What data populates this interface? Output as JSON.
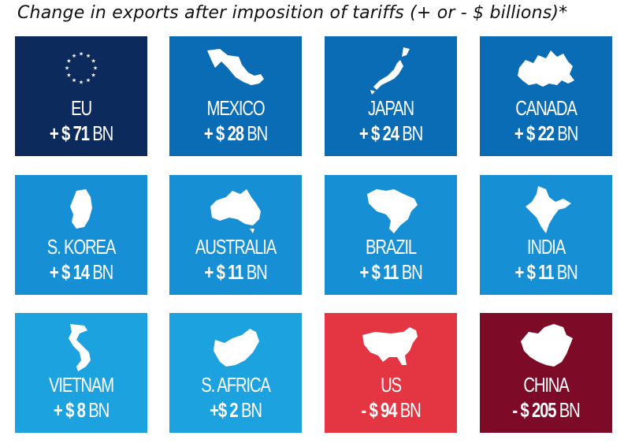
{
  "title": "Change in exports after imposition of tariffs (+ or - $ billions)*",
  "colors": {
    "eu": "#0c2a5c",
    "blue_dark": "#0a6cb4",
    "blue_mid": "#168fd4",
    "blue_light": "#1da2e0",
    "us": "#e43642",
    "china": "#7d0b28"
  },
  "tiles": [
    {
      "name": "EU",
      "amount": "+ $ 71",
      "unit": "BN",
      "icon": "eu-stars-icon",
      "color": "#0c2a5c"
    },
    {
      "name": "MEXICO",
      "amount": "+ $ 28",
      "unit": "BN",
      "icon": "mexico-map-icon",
      "color": "#0a6cb4"
    },
    {
      "name": "JAPAN",
      "amount": "+ $ 24",
      "unit": "BN",
      "icon": "japan-map-icon",
      "color": "#0a6cb4"
    },
    {
      "name": "CANADA",
      "amount": "+ $ 22",
      "unit": "BN",
      "icon": "canada-map-icon",
      "color": "#0a6cb4"
    },
    {
      "name": "S. KOREA",
      "amount": "+ $ 14",
      "unit": "BN",
      "icon": "south-korea-map-icon",
      "color": "#168fd4"
    },
    {
      "name": "AUSTRALIA",
      "amount": "+ $ 11",
      "unit": "BN",
      "icon": "australia-map-icon",
      "color": "#168fd4"
    },
    {
      "name": "BRAZIL",
      "amount": "+ $ 11",
      "unit": "BN",
      "icon": "brazil-map-icon",
      "color": "#168fd4"
    },
    {
      "name": "INDIA",
      "amount": "+ $ 11",
      "unit": "BN",
      "icon": "india-map-icon",
      "color": "#168fd4"
    },
    {
      "name": "VIETNAM",
      "amount": "+ $ 8",
      "unit": "BN",
      "icon": "vietnam-map-icon",
      "color": "#1da2e0"
    },
    {
      "name": "S. AFRICA",
      "amount": "+$ 2",
      "unit": "BN",
      "icon": "south-africa-map-icon",
      "color": "#1da2e0"
    },
    {
      "name": "US",
      "amount": "- $ 94",
      "unit": "BN",
      "icon": "us-map-icon",
      "color": "#e43642"
    },
    {
      "name": "CHINA",
      "amount": "- $ 205",
      "unit": "BN",
      "icon": "china-map-icon",
      "color": "#7d0b28"
    }
  ],
  "chart_data": {
    "type": "table",
    "title": "Change in exports after imposition of tariffs (+ or - $ billions)*",
    "unit": "BN",
    "categories": [
      "EU",
      "MEXICO",
      "JAPAN",
      "CANADA",
      "S. KOREA",
      "AUSTRALIA",
      "BRAZIL",
      "INDIA",
      "VIETNAM",
      "S. AFRICA",
      "US",
      "CHINA"
    ],
    "values": [
      71,
      28,
      24,
      22,
      14,
      11,
      11,
      11,
      8,
      2,
      -94,
      -205
    ]
  }
}
